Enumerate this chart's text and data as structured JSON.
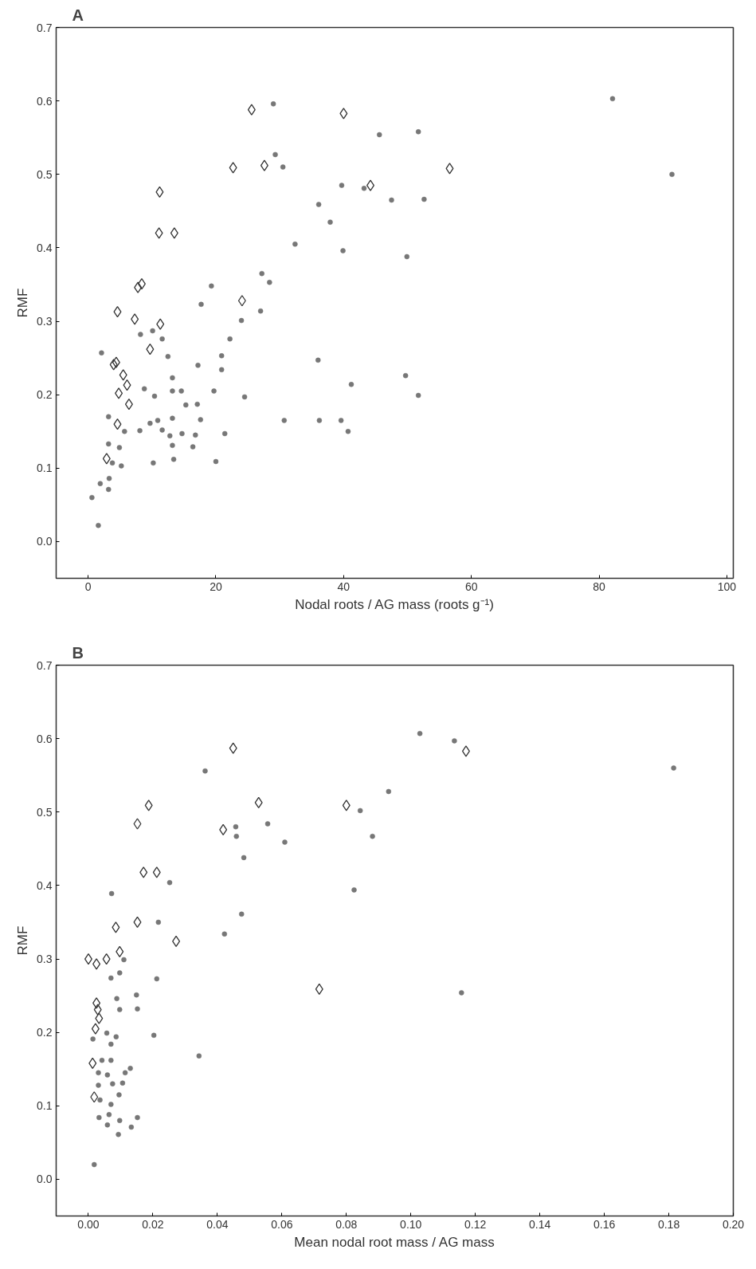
{
  "chart_data": [
    {
      "type": "scatter",
      "title": "A",
      "xlabel": "Nodal roots / AG mass (roots g⁻¹)",
      "ylabel": "RMF",
      "xlim": [
        -5,
        101
      ],
      "ylim": [
        -0.05,
        0.7
      ],
      "xticks": [
        0,
        20,
        40,
        60,
        80,
        100
      ],
      "yticks": [
        {
          "value": 0,
          "label": "0.0"
        },
        0.1,
        0.2,
        0.3,
        0.4,
        0.5,
        0.6,
        0.7
      ],
      "grid": false,
      "series": [
        {
          "color": "#333333",
          "marker": "diamond",
          "x": [
            25.6,
            40,
            22.7,
            27.6,
            11.2,
            11.1,
            13.5,
            7.8,
            8.4,
            4.6,
            7.3,
            11.3,
            9.7,
            4.0,
            4.4,
            5.5,
            6.1,
            4.8,
            6.4,
            4.6,
            2.9,
            24.1,
            44.2,
            56.6
          ],
          "values": [
            0.588,
            0.583,
            0.509,
            0.512,
            0.476,
            0.42,
            0.42,
            0.346,
            0.351,
            0.313,
            0.303,
            0.296,
            0.262,
            0.241,
            0.244,
            0.227,
            0.213,
            0.202,
            0.187,
            0.16,
            0.113,
            0.328,
            0.485,
            0.508
          ]
        },
        {
          "color": "#777777",
          "marker": "circle",
          "x": [
            29.0,
            29.3,
            30.5,
            39.7,
            36.1,
            37.9,
            32.4,
            39.9,
            27.2,
            28.4,
            19.3,
            17.7,
            27.0,
            24.0,
            22.2,
            20.9,
            36.0,
            20.9,
            17.2,
            41.2,
            24.5,
            19.7,
            30.7,
            36.2,
            39.6,
            40.7,
            21.4,
            17.6,
            17.1,
            16.8,
            16.4,
            20.0,
            15.3,
            14.6,
            13.2,
            13.2,
            12.5,
            11.6,
            10.1,
            8.2,
            10.4,
            8.8,
            13.2,
            10.9,
            9.7,
            11.6,
            12.8,
            13.2,
            13.4,
            14.7,
            10.2,
            8.1,
            5.7,
            4.9,
            3.2,
            2.1,
            3.2,
            3.8,
            5.2,
            3.3,
            1.9,
            3.2,
            0.6,
            1.6,
            45.6,
            51.7,
            47.5,
            52.6,
            49.9,
            49.7,
            51.7,
            82.1,
            91.4,
            43.2
          ],
          "values": [
            0.596,
            0.527,
            0.51,
            0.485,
            0.459,
            0.435,
            0.405,
            0.396,
            0.365,
            0.353,
            0.348,
            0.323,
            0.314,
            0.301,
            0.276,
            0.253,
            0.247,
            0.234,
            0.24,
            0.214,
            0.197,
            0.205,
            0.165,
            0.165,
            0.165,
            0.15,
            0.147,
            0.166,
            0.187,
            0.145,
            0.129,
            0.109,
            0.186,
            0.205,
            0.205,
            0.223,
            0.252,
            0.276,
            0.287,
            0.282,
            0.198,
            0.208,
            0.168,
            0.165,
            0.161,
            0.152,
            0.144,
            0.131,
            0.112,
            0.147,
            0.107,
            0.151,
            0.15,
            0.128,
            0.17,
            0.257,
            0.133,
            0.107,
            0.103,
            0.086,
            0.079,
            0.071,
            0.06,
            0.022,
            0.554,
            0.558,
            0.465,
            0.466,
            0.388,
            0.226,
            0.199,
            0.603,
            0.5,
            0.481
          ]
        }
      ]
    },
    {
      "type": "scatter",
      "title": "B",
      "xlabel": "Mean nodal root mass / AG mass",
      "ylabel": "RMF",
      "xlim": [
        -0.01,
        0.2
      ],
      "ylim": [
        -0.05,
        0.7
      ],
      "xticks": [
        {
          "value": 0,
          "label": "0.00"
        },
        {
          "value": 0.02,
          "label": "0.02"
        },
        {
          "value": 0.04,
          "label": "0.04"
        },
        {
          "value": 0.06,
          "label": "0.06"
        },
        {
          "value": 0.08,
          "label": "0.08"
        },
        {
          "value": 0.1,
          "label": "0.10"
        },
        {
          "value": 0.12,
          "label": "0.12"
        },
        {
          "value": 0.14,
          "label": "0.14"
        },
        {
          "value": 0.16,
          "label": "0.16"
        },
        {
          "value": 0.18,
          "label": "0.18"
        },
        {
          "value": 0.2,
          "label": "0.20"
        }
      ],
      "yticks": [
        {
          "value": 0,
          "label": "0.0"
        },
        0.1,
        0.2,
        0.3,
        0.4,
        0.5,
        0.6,
        0.7
      ],
      "grid": false,
      "series": [
        {
          "color": "#333333",
          "marker": "diamond",
          "x": [
            0.0449,
            0.0187,
            0.0152,
            0.0528,
            0.0418,
            0.08,
            0.0171,
            0.0212,
            0.0152,
            0.0085,
            0.0272,
            0.0097,
            0.0,
            0.0025,
            0.0056,
            0.0716,
            0.0025,
            0.0029,
            0.0033,
            0.0022,
            0.0013,
            0.0018,
            0.1171
          ],
          "values": [
            0.587,
            0.509,
            0.484,
            0.513,
            0.476,
            0.509,
            0.418,
            0.418,
            0.35,
            0.343,
            0.324,
            0.31,
            0.3,
            0.293,
            0.3,
            0.259,
            0.24,
            0.231,
            0.219,
            0.205,
            0.158,
            0.112,
            0.583
          ]
        },
        {
          "color": "#777777",
          "marker": "circle",
          "x": [
            0.0362,
            0.0457,
            0.0459,
            0.0556,
            0.0609,
            0.0843,
            0.0824,
            0.0482,
            0.0475,
            0.0422,
            0.0252,
            0.0217,
            0.0212,
            0.0203,
            0.0343,
            0.0072,
            0.011,
            0.007,
            0.0097,
            0.0088,
            0.0097,
            0.0149,
            0.0152,
            0.0057,
            0.0086,
            0.007,
            0.0014,
            0.0042,
            0.007,
            0.0031,
            0.0059,
            0.013,
            0.0114,
            0.0106,
            0.0075,
            0.0031,
            0.0095,
            0.007,
            0.0036,
            0.0064,
            0.0033,
            0.0152,
            0.0097,
            0.0059,
            0.0133,
            0.0093,
            0.0018,
            0.1028,
            0.1135,
            0.0931,
            0.0881,
            0.1815,
            0.1157
          ],
          "values": [
            0.556,
            0.48,
            0.467,
            0.484,
            0.459,
            0.502,
            0.394,
            0.438,
            0.361,
            0.334,
            0.404,
            0.35,
            0.273,
            0.196,
            0.168,
            0.389,
            0.299,
            0.274,
            0.281,
            0.246,
            0.231,
            0.251,
            0.232,
            0.199,
            0.194,
            0.184,
            0.191,
            0.162,
            0.162,
            0.145,
            0.142,
            0.151,
            0.145,
            0.131,
            0.13,
            0.128,
            0.115,
            0.102,
            0.108,
            0.088,
            0.084,
            0.084,
            0.08,
            0.074,
            0.071,
            0.061,
            0.02,
            0.607,
            0.597,
            0.528,
            0.467,
            0.56,
            0.254
          ]
        }
      ]
    }
  ]
}
